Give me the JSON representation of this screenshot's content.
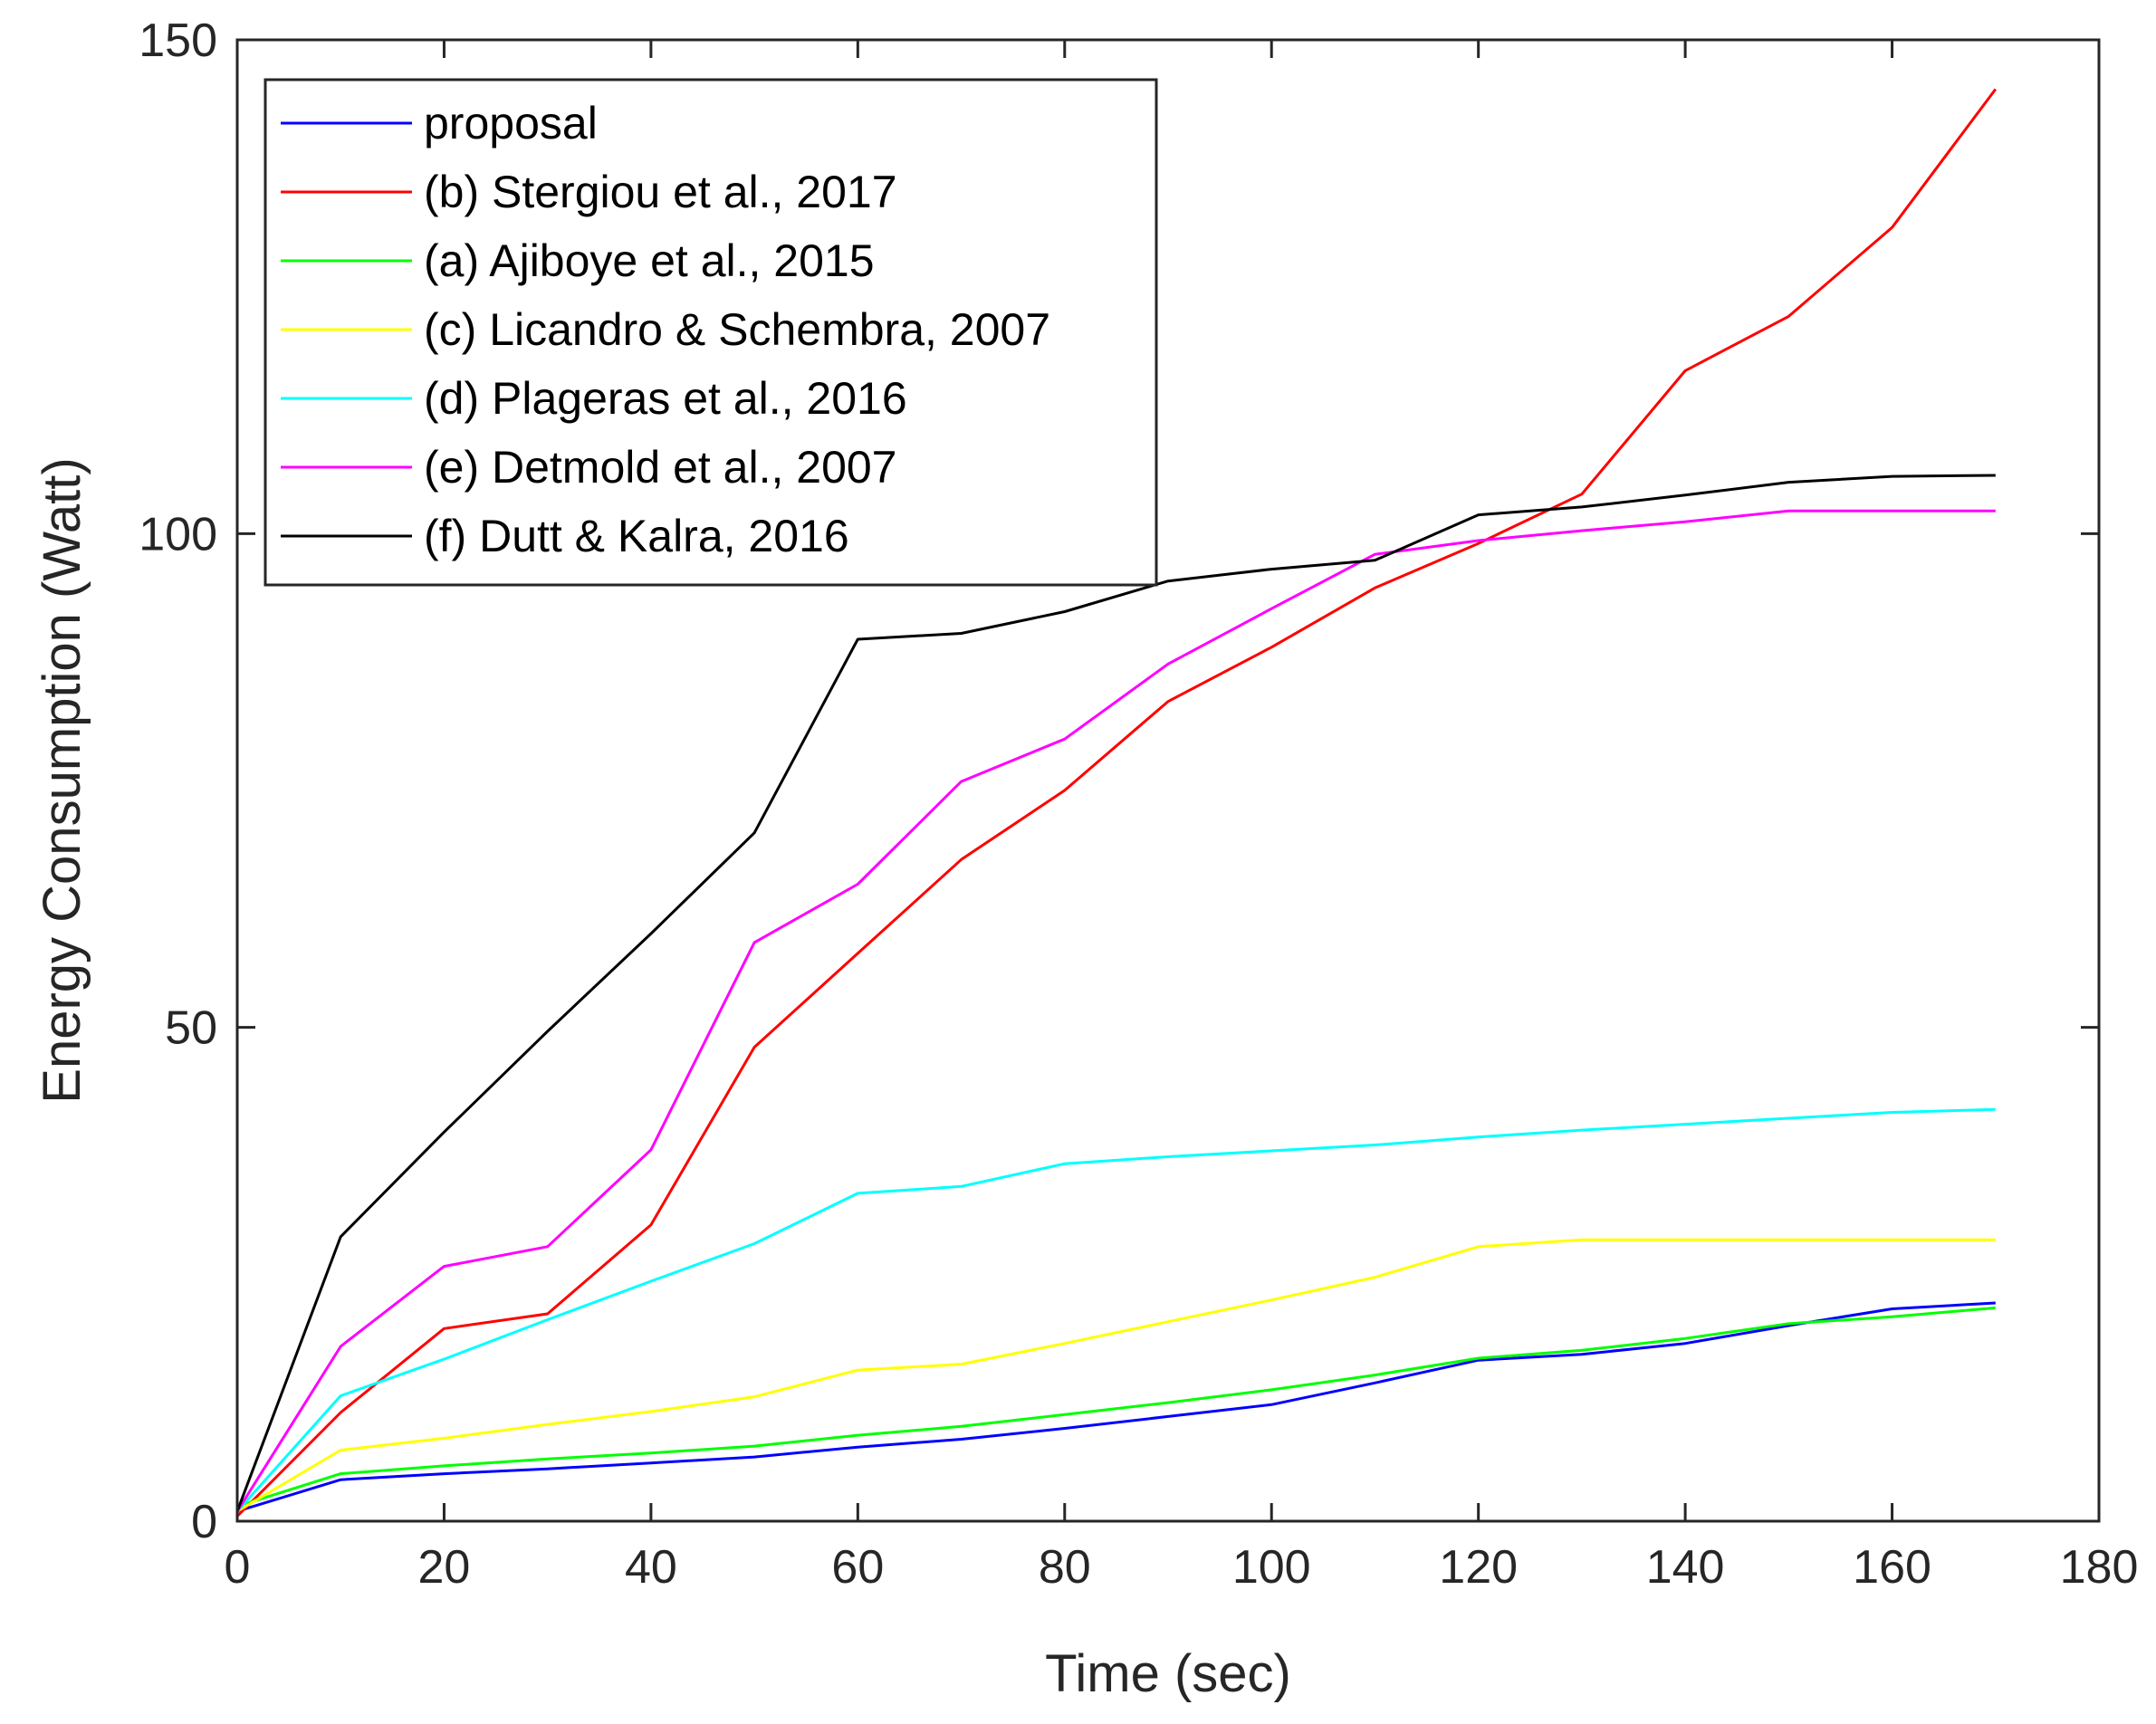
{
  "chart_data": {
    "type": "line",
    "title": "",
    "xlabel": "Time (sec)",
    "ylabel": "Energy Consumption (Watt)",
    "xlim": [
      0,
      180
    ],
    "ylim": [
      0,
      150
    ],
    "xticks": [
      0,
      20,
      40,
      60,
      80,
      100,
      120,
      140,
      160,
      180
    ],
    "yticks": [
      0,
      50,
      100,
      150
    ],
    "grid": false,
    "legend_position": "top-left",
    "x": [
      0,
      10,
      20,
      30,
      40,
      50,
      60,
      70,
      80,
      90,
      100,
      110,
      120,
      130,
      140,
      150,
      160,
      170
    ],
    "series": [
      {
        "name": "proposal",
        "color": "#0000ff",
        "values": [
          1,
          4.2,
          4.8,
          5.3,
          5.9,
          6.5,
          7.5,
          8.3,
          9.4,
          10.6,
          11.8,
          14,
          16.3,
          16.9,
          18.0,
          19.8,
          21.5,
          22.1
        ]
      },
      {
        "name": "(b) Stergiou et al., 2017",
        "color": "#ff0000",
        "values": [
          0.5,
          11,
          19.5,
          21,
          30,
          48,
          57.5,
          67,
          74,
          83,
          88.5,
          94.5,
          99,
          104,
          116.5,
          122,
          131,
          145
        ]
      },
      {
        "name": "(a) Ajiboye et al., 2015",
        "color": "#00ff00",
        "values": [
          1.5,
          4.8,
          5.6,
          6.3,
          6.9,
          7.6,
          8.7,
          9.6,
          10.8,
          12.0,
          13.3,
          14.8,
          16.5,
          17.3,
          18.5,
          20.0,
          20.7,
          21.6
        ]
      },
      {
        "name": "(c) Licandro & Schembra, 2007",
        "color": "#ffff00",
        "values": [
          1,
          7.2,
          8.4,
          9.8,
          11.1,
          12.6,
          15.3,
          15.9,
          18,
          20.2,
          22.4,
          24.7,
          27.8,
          28.5,
          28.5,
          28.5,
          28.5,
          28.5
        ]
      },
      {
        "name": "(d) Plageras et al., 2016",
        "color": "#00ffff",
        "values": [
          1,
          12.7,
          16.4,
          20.4,
          24.3,
          28.1,
          33.2,
          33.9,
          36.2,
          36.9,
          37.5,
          38.1,
          38.9,
          39.6,
          40.2,
          40.8,
          41.4,
          41.7
        ]
      },
      {
        "name": "(e) Detmold et al., 2007",
        "color": "#ff00ff",
        "values": [
          1,
          17.7,
          25.8,
          27.8,
          37.6,
          58.6,
          64.5,
          74.9,
          79.2,
          86.8,
          92.4,
          97.9,
          99.3,
          100.3,
          101.2,
          102.3,
          102.3,
          102.3
        ]
      },
      {
        "name": "(f) Dutt & Kalra, 2016",
        "color": "#000000",
        "values": [
          1,
          28.8,
          39.4,
          49.6,
          59.5,
          69.7,
          89.3,
          89.9,
          92.1,
          95.2,
          96.4,
          97.3,
          101.9,
          102.7,
          103.9,
          105.2,
          105.8,
          105.9
        ]
      }
    ]
  }
}
